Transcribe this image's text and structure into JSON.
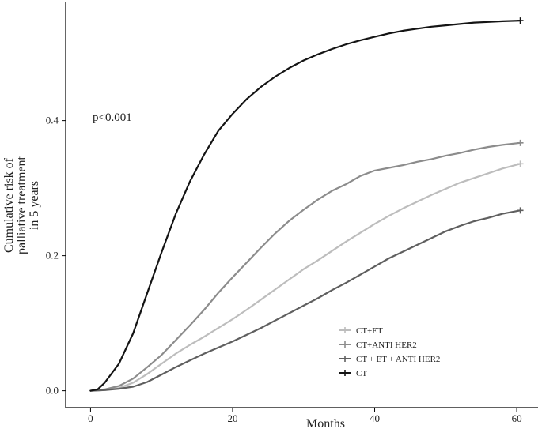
{
  "chart_data": {
    "type": "line",
    "xlabel": "Months",
    "ylabel_lines": [
      "Cumulative risk of",
      "palliative treatment",
      "in 5 years"
    ],
    "annotation": "p<0.001",
    "xlim": [
      -3.5,
      63
    ],
    "ylim": [
      -0.025,
      0.575
    ],
    "x_ticks": [
      0,
      20,
      40,
      60
    ],
    "y_ticks": [
      0.0,
      0.2,
      0.4
    ],
    "x_tick_labels": [
      "0",
      "20",
      "40",
      "60"
    ],
    "y_tick_labels": [
      "0.0",
      "0.2",
      "0.4"
    ],
    "legend_position": "bottom-right",
    "series": [
      {
        "name": "CT+ET",
        "color": "#bdbdbd",
        "x": [
          0,
          2,
          4,
          6,
          8,
          10,
          12,
          14,
          16,
          18,
          20,
          22,
          24,
          26,
          28,
          30,
          32,
          34,
          36,
          38,
          40,
          42,
          44,
          46,
          48,
          50,
          52,
          54,
          56,
          58,
          60.5
        ],
        "y": [
          0,
          0.001,
          0.004,
          0.012,
          0.025,
          0.04,
          0.055,
          0.068,
          0.08,
          0.093,
          0.106,
          0.12,
          0.135,
          0.15,
          0.165,
          0.18,
          0.193,
          0.207,
          0.221,
          0.234,
          0.247,
          0.259,
          0.27,
          0.28,
          0.29,
          0.299,
          0.308,
          0.315,
          0.322,
          0.329,
          0.336
        ]
      },
      {
        "name": "CT+ANTI HER2",
        "color": "#8c8c8c",
        "x": [
          0,
          2,
          4,
          6,
          8,
          10,
          12,
          14,
          16,
          18,
          20,
          22,
          24,
          26,
          28,
          30,
          32,
          34,
          36,
          38,
          40,
          42,
          44,
          46,
          48,
          50,
          52,
          54,
          56,
          58,
          60.5
        ],
        "y": [
          0,
          0.002,
          0.007,
          0.018,
          0.035,
          0.053,
          0.075,
          0.097,
          0.12,
          0.145,
          0.168,
          0.19,
          0.212,
          0.233,
          0.252,
          0.268,
          0.283,
          0.296,
          0.306,
          0.318,
          0.326,
          0.33,
          0.334,
          0.339,
          0.343,
          0.348,
          0.352,
          0.357,
          0.361,
          0.364,
          0.367
        ]
      },
      {
        "name": "CT + ET + ANTI HER2",
        "color": "#5f5f5f",
        "x": [
          0,
          2,
          4,
          6,
          8,
          10,
          12,
          14,
          16,
          18,
          20,
          22,
          24,
          26,
          28,
          30,
          32,
          34,
          36,
          38,
          40,
          42,
          44,
          46,
          48,
          50,
          52,
          54,
          56,
          58,
          60.5
        ],
        "y": [
          0,
          0.001,
          0.003,
          0.006,
          0.013,
          0.024,
          0.035,
          0.045,
          0.055,
          0.064,
          0.073,
          0.083,
          0.093,
          0.104,
          0.115,
          0.126,
          0.137,
          0.149,
          0.16,
          0.172,
          0.184,
          0.196,
          0.206,
          0.216,
          0.226,
          0.236,
          0.244,
          0.251,
          0.256,
          0.262,
          0.267
        ]
      },
      {
        "name": "CT",
        "color": "#141414",
        "x": [
          0,
          1,
          2,
          4,
          6,
          8,
          10,
          12,
          14,
          16,
          18,
          20,
          22,
          24,
          26,
          28,
          30,
          32,
          34,
          36,
          38,
          40,
          42,
          44,
          46,
          48,
          50,
          52,
          54,
          56,
          58,
          60.5
        ],
        "y": [
          0,
          0.002,
          0.012,
          0.04,
          0.085,
          0.145,
          0.205,
          0.262,
          0.31,
          0.35,
          0.385,
          0.41,
          0.432,
          0.45,
          0.465,
          0.478,
          0.489,
          0.498,
          0.506,
          0.513,
          0.519,
          0.524,
          0.529,
          0.533,
          0.536,
          0.539,
          0.541,
          0.543,
          0.545,
          0.546,
          0.547,
          0.548
        ]
      }
    ]
  }
}
